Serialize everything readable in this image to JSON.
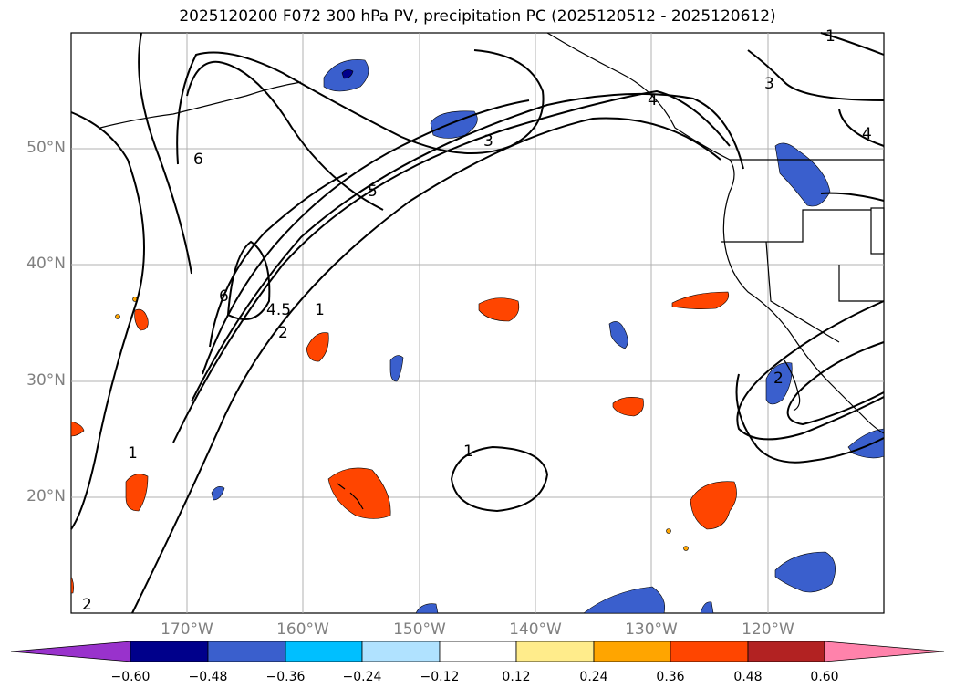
{
  "title": "2025120200 F072 300 hPa PV, precipitation PC (2025120512 - 2025120612)",
  "lat_labels": [
    "50°N",
    "40°N",
    "30°N",
    "20°N"
  ],
  "lon_labels": [
    "170°W",
    "160°W",
    "150°W",
    "140°W",
    "130°W",
    "120°W"
  ],
  "contour_labels": [
    "1",
    "2",
    "3",
    "4",
    "5",
    "6",
    "1",
    "2",
    "4.5",
    "6",
    "1",
    "2",
    "3",
    "4",
    "1"
  ],
  "colorbar": {
    "tick_labels": [
      "−0.60",
      "−0.48",
      "−0.36",
      "−0.24",
      "−0.12",
      "0.12",
      "0.24",
      "0.36",
      "0.48",
      "0.60"
    ],
    "colors": [
      "#9932cc",
      "#00008b",
      "#3a5fcd",
      "#00bfff",
      "#b0e2ff",
      "#ffffff",
      "#ffec8b",
      "#ffa500",
      "#ff4500",
      "#b22222",
      "#ff82ab"
    ]
  },
  "colors": {
    "land_outline": "#000000",
    "grid": "#b0b0b0",
    "contour": "#000000",
    "neg_precip": "#3a5fcd",
    "pos_precip": "#ff4500"
  }
}
